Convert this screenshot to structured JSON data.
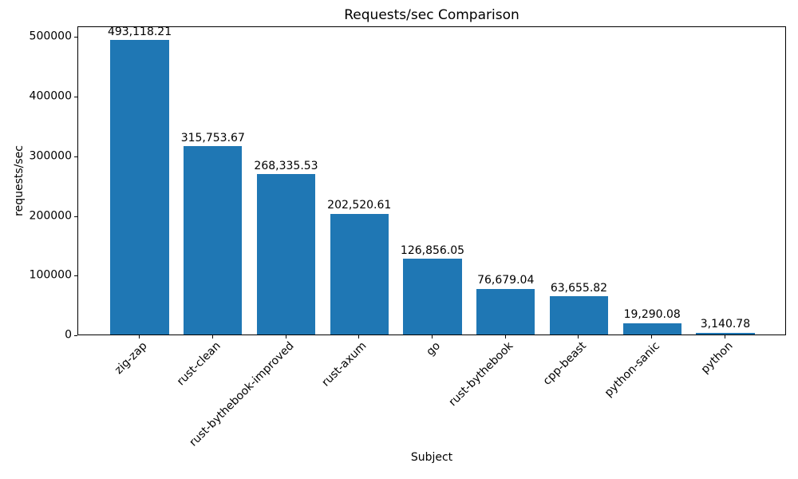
{
  "chart_data": {
    "type": "bar",
    "title": "Requests/sec Comparison",
    "xlabel": "Subject",
    "ylabel": "requests/sec",
    "categories": [
      "zig-zap",
      "rust-clean",
      "rust-bythebook-improved",
      "rust-axum",
      "go",
      "rust-bythebook",
      "cpp-beast",
      "python-sanic",
      "python"
    ],
    "values": [
      493118.21,
      315753.67,
      268335.53,
      202520.61,
      126856.05,
      76679.04,
      63655.82,
      19290.08,
      3140.78
    ],
    "value_labels": [
      "493,118.21",
      "315,753.67",
      "268,335.53",
      "202,520.61",
      "126,856.05",
      "76,679.04",
      "63,655.82",
      "19,290.08",
      "3,140.78"
    ],
    "yticks": [
      0,
      100000,
      200000,
      300000,
      400000,
      500000
    ],
    "ytick_labels": [
      "0",
      "100000",
      "200000",
      "300000",
      "400000",
      "500000"
    ],
    "ylim": [
      0,
      517774
    ],
    "bar_color": "#1f77b4",
    "text_color": "#000000",
    "background_color": "#ffffff",
    "grid": false,
    "legend": null,
    "x_tick_rotation": 45
  }
}
